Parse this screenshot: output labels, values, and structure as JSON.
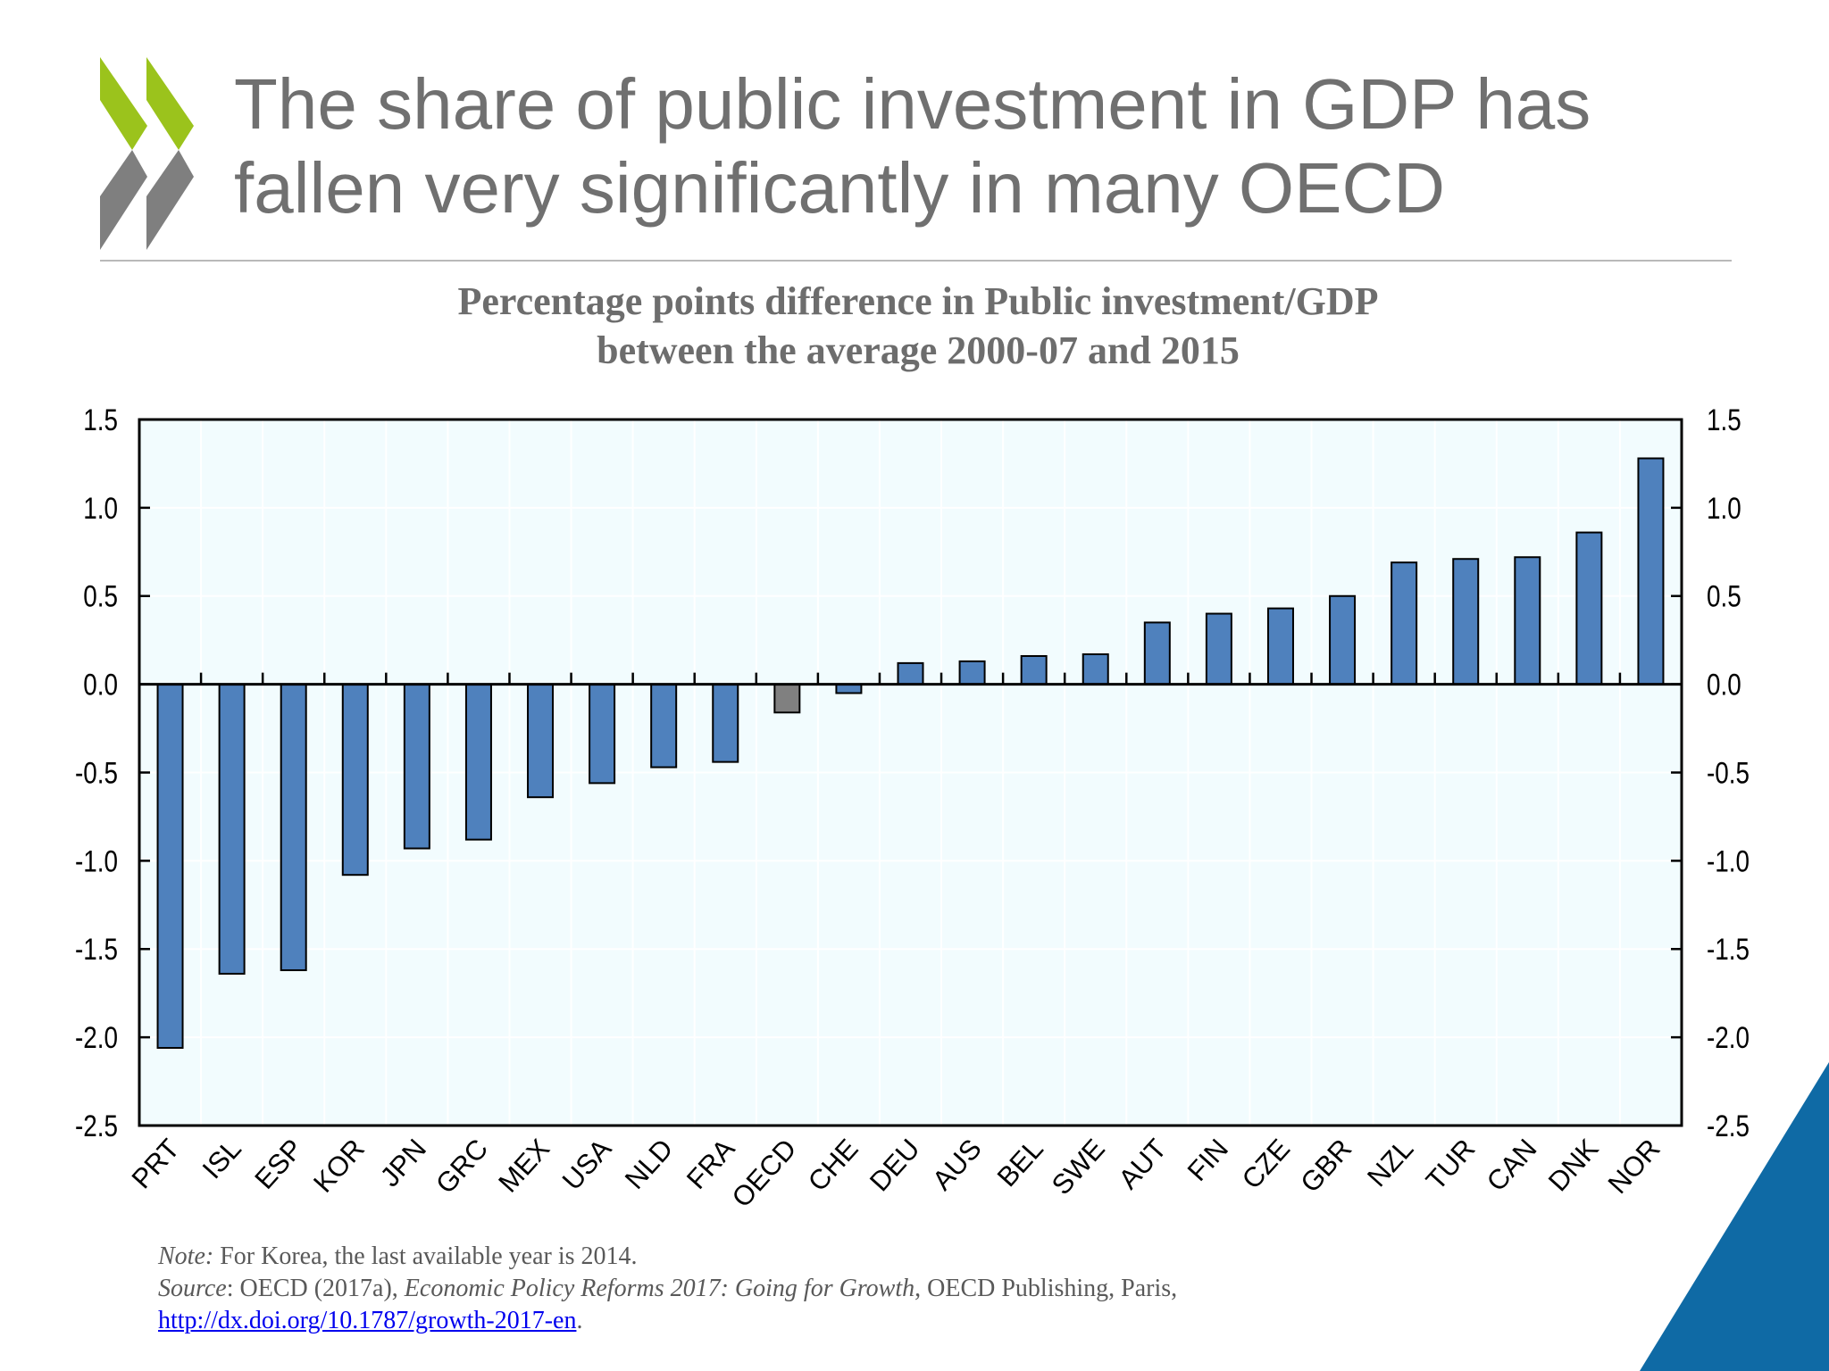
{
  "slide": {
    "title_line1": "The share of public investment in GDP has",
    "title_line2": "fallen very significantly in many OECD"
  },
  "logo": {
    "icon": "oecd-chevrons-icon",
    "colors": {
      "green": "#9bc31c",
      "gray": "#7f7f7f"
    }
  },
  "corner": {
    "icon": "blue-corner-triangle",
    "color": "#0f6aa5"
  },
  "chart_data": {
    "type": "bar",
    "title": "Percentage points difference in Public investment/GDP between the average 2000-07 and 2015",
    "title_line1": "Percentage points difference in Public investment/GDP",
    "title_line2": "between the average 2000-07 and 2015",
    "xlabel": "",
    "ylabel": "",
    "ylim": [
      -2.5,
      1.5
    ],
    "yticks": [
      "1.5",
      "1.0",
      "0.5",
      "0.0",
      "-0.5",
      "-1.0",
      "-1.5",
      "-2.0",
      "-2.5"
    ],
    "ytick_values": [
      1.5,
      1.0,
      0.5,
      0.0,
      -0.5,
      -1.0,
      -1.5,
      -2.0,
      -2.5
    ],
    "y_axis_both_sides": true,
    "grid": true,
    "legend": "none",
    "colors": {
      "bar": "#4f81bd",
      "highlight": "#808080",
      "plot_bg": "#f2fcfe",
      "grid": "#ffffff"
    },
    "highlight_category": "OECD",
    "categories": [
      "PRT",
      "ISL",
      "ESP",
      "KOR",
      "JPN",
      "GRC",
      "MEX",
      "USA",
      "NLD",
      "FRA",
      "OECD",
      "CHE",
      "DEU",
      "AUS",
      "BEL",
      "SWE",
      "AUT",
      "FIN",
      "CZE",
      "GBR",
      "NZL",
      "TUR",
      "CAN",
      "DNK",
      "NOR"
    ],
    "values": [
      -2.06,
      -1.64,
      -1.62,
      -1.08,
      -0.93,
      -0.88,
      -0.64,
      -0.56,
      -0.47,
      -0.44,
      -0.16,
      -0.05,
      0.12,
      0.13,
      0.16,
      0.17,
      0.35,
      0.4,
      0.43,
      0.5,
      0.69,
      0.71,
      0.72,
      0.86,
      1.28
    ]
  },
  "footnote": {
    "note_label": "Note:",
    "note_text": " For Korea, the last available year is 2014.",
    "source_label": "Source",
    "source_pre": ": OECD (2017a), ",
    "source_title": "Economic Policy Reforms 2017: Going for Growth",
    "source_post": ", OECD Publishing, Paris,",
    "link": "http://dx.doi.org/10.1787/growth-2017-en",
    "link_suffix": "."
  }
}
